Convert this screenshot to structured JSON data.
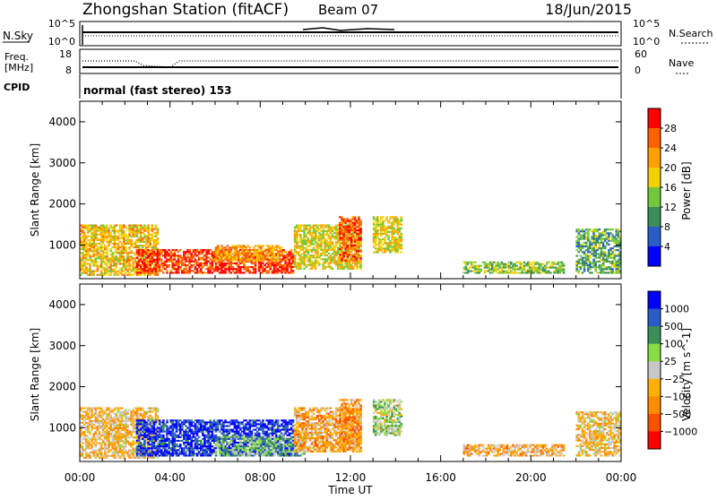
{
  "header": {
    "station": "Zhongshan Station (fitACF)",
    "beam": "Beam 07",
    "date": "18/Jun/2015"
  },
  "status_panels": {
    "nsky_label": "N.Sky",
    "nsky_ticks": [
      "10^5",
      "10^0"
    ],
    "nsearch_label": "N.Search",
    "nsearch_ticks": [
      "10^5",
      "10^0"
    ],
    "freq_label": "Freq.",
    "freq_unit": "[MHz]",
    "freq_ticks": [
      "18",
      "8"
    ],
    "nave_label": "Nave",
    "nave_ticks": [
      "60",
      "0"
    ],
    "cpid_label": "CPID",
    "cpid_text": "normal (fast stereo) 153"
  },
  "x_axis": {
    "label": "Time UT",
    "ticks": [
      "00:00",
      "04:00",
      "08:00",
      "12:00",
      "16:00",
      "20:00",
      "00:00"
    ]
  },
  "colors": {
    "power": [
      "#0000ff",
      "#2a5cc8",
      "#3d8f5a",
      "#72c83c",
      "#f0d000",
      "#ffa000",
      "#ff6000",
      "#ff0000"
    ],
    "velocity": [
      "#ff0000",
      "#ff5000",
      "#ff8c00",
      "#ffb000",
      "#c8c8c8",
      "#88dd44",
      "#3d8f5a",
      "#2a5cc8",
      "#0000ff"
    ]
  },
  "chart_data": [
    {
      "type": "heatmap",
      "panel": "power",
      "ylabel": "Slant Range [km]",
      "yticks": [
        "4000",
        "3000",
        "2000",
        "1000"
      ],
      "ylim": [
        180,
        4500
      ],
      "xlabel": "Time UT",
      "xlim_hours": [
        0,
        24
      ],
      "colorbar": {
        "label": "Power [dB]",
        "ticks": [
          "28",
          "24",
          "20",
          "16",
          "12",
          "8",
          "4"
        ],
        "range": [
          0,
          32
        ]
      },
      "echo_regions": [
        {
          "t_start": 0.0,
          "t_end": 3.5,
          "range_min": 250,
          "range_max": 1500,
          "power_db": 20
        },
        {
          "t_start": 2.5,
          "t_end": 9.5,
          "range_min": 300,
          "range_max": 900,
          "power_db": 28
        },
        {
          "t_start": 6.0,
          "t_end": 9.0,
          "range_min": 600,
          "range_max": 1000,
          "power_db": 22
        },
        {
          "t_start": 9.5,
          "t_end": 12.5,
          "range_min": 400,
          "range_max": 1500,
          "power_db": 18
        },
        {
          "t_start": 11.5,
          "t_end": 12.5,
          "range_min": 600,
          "range_max": 1700,
          "power_db": 26
        },
        {
          "t_start": 13.0,
          "t_end": 14.3,
          "range_min": 800,
          "range_max": 1700,
          "power_db": 18
        },
        {
          "t_start": 17.0,
          "t_end": 21.5,
          "range_min": 300,
          "range_max": 600,
          "power_db": 14
        },
        {
          "t_start": 22.0,
          "t_end": 24.0,
          "range_min": 300,
          "range_max": 1400,
          "power_db": 12
        }
      ]
    },
    {
      "type": "heatmap",
      "panel": "velocity",
      "ylabel": "Slant Range [km]",
      "yticks": [
        "4000",
        "3000",
        "2000",
        "1000"
      ],
      "ylim": [
        180,
        4500
      ],
      "xlabel": "Time UT",
      "xlim_hours": [
        0,
        24
      ],
      "colorbar": {
        "label": "Velocity [m s^-1]",
        "ticks": [
          "1000",
          "500",
          "100",
          "25",
          "−25",
          "−100",
          "−500",
          "−1000"
        ],
        "range": [
          -1000,
          1000
        ]
      },
      "echo_regions": [
        {
          "t_start": 0.0,
          "t_end": 3.5,
          "range_min": 250,
          "range_max": 1500,
          "velocity": -200
        },
        {
          "t_start": 2.5,
          "t_end": 9.5,
          "range_min": 300,
          "range_max": 1200,
          "velocity": 800
        },
        {
          "t_start": 6.0,
          "t_end": 10.0,
          "range_min": 300,
          "range_max": 800,
          "velocity": 300
        },
        {
          "t_start": 9.5,
          "t_end": 12.5,
          "range_min": 400,
          "range_max": 1500,
          "velocity": -300
        },
        {
          "t_start": 11.5,
          "t_end": 12.5,
          "range_min": 600,
          "range_max": 1700,
          "velocity": -400
        },
        {
          "t_start": 13.0,
          "t_end": 14.3,
          "range_min": 800,
          "range_max": 1700,
          "velocity": 150
        },
        {
          "t_start": 17.0,
          "t_end": 21.5,
          "range_min": 300,
          "range_max": 600,
          "velocity": -250
        },
        {
          "t_start": 22.0,
          "t_end": 24.0,
          "range_min": 300,
          "range_max": 1400,
          "velocity": -150
        }
      ]
    }
  ]
}
